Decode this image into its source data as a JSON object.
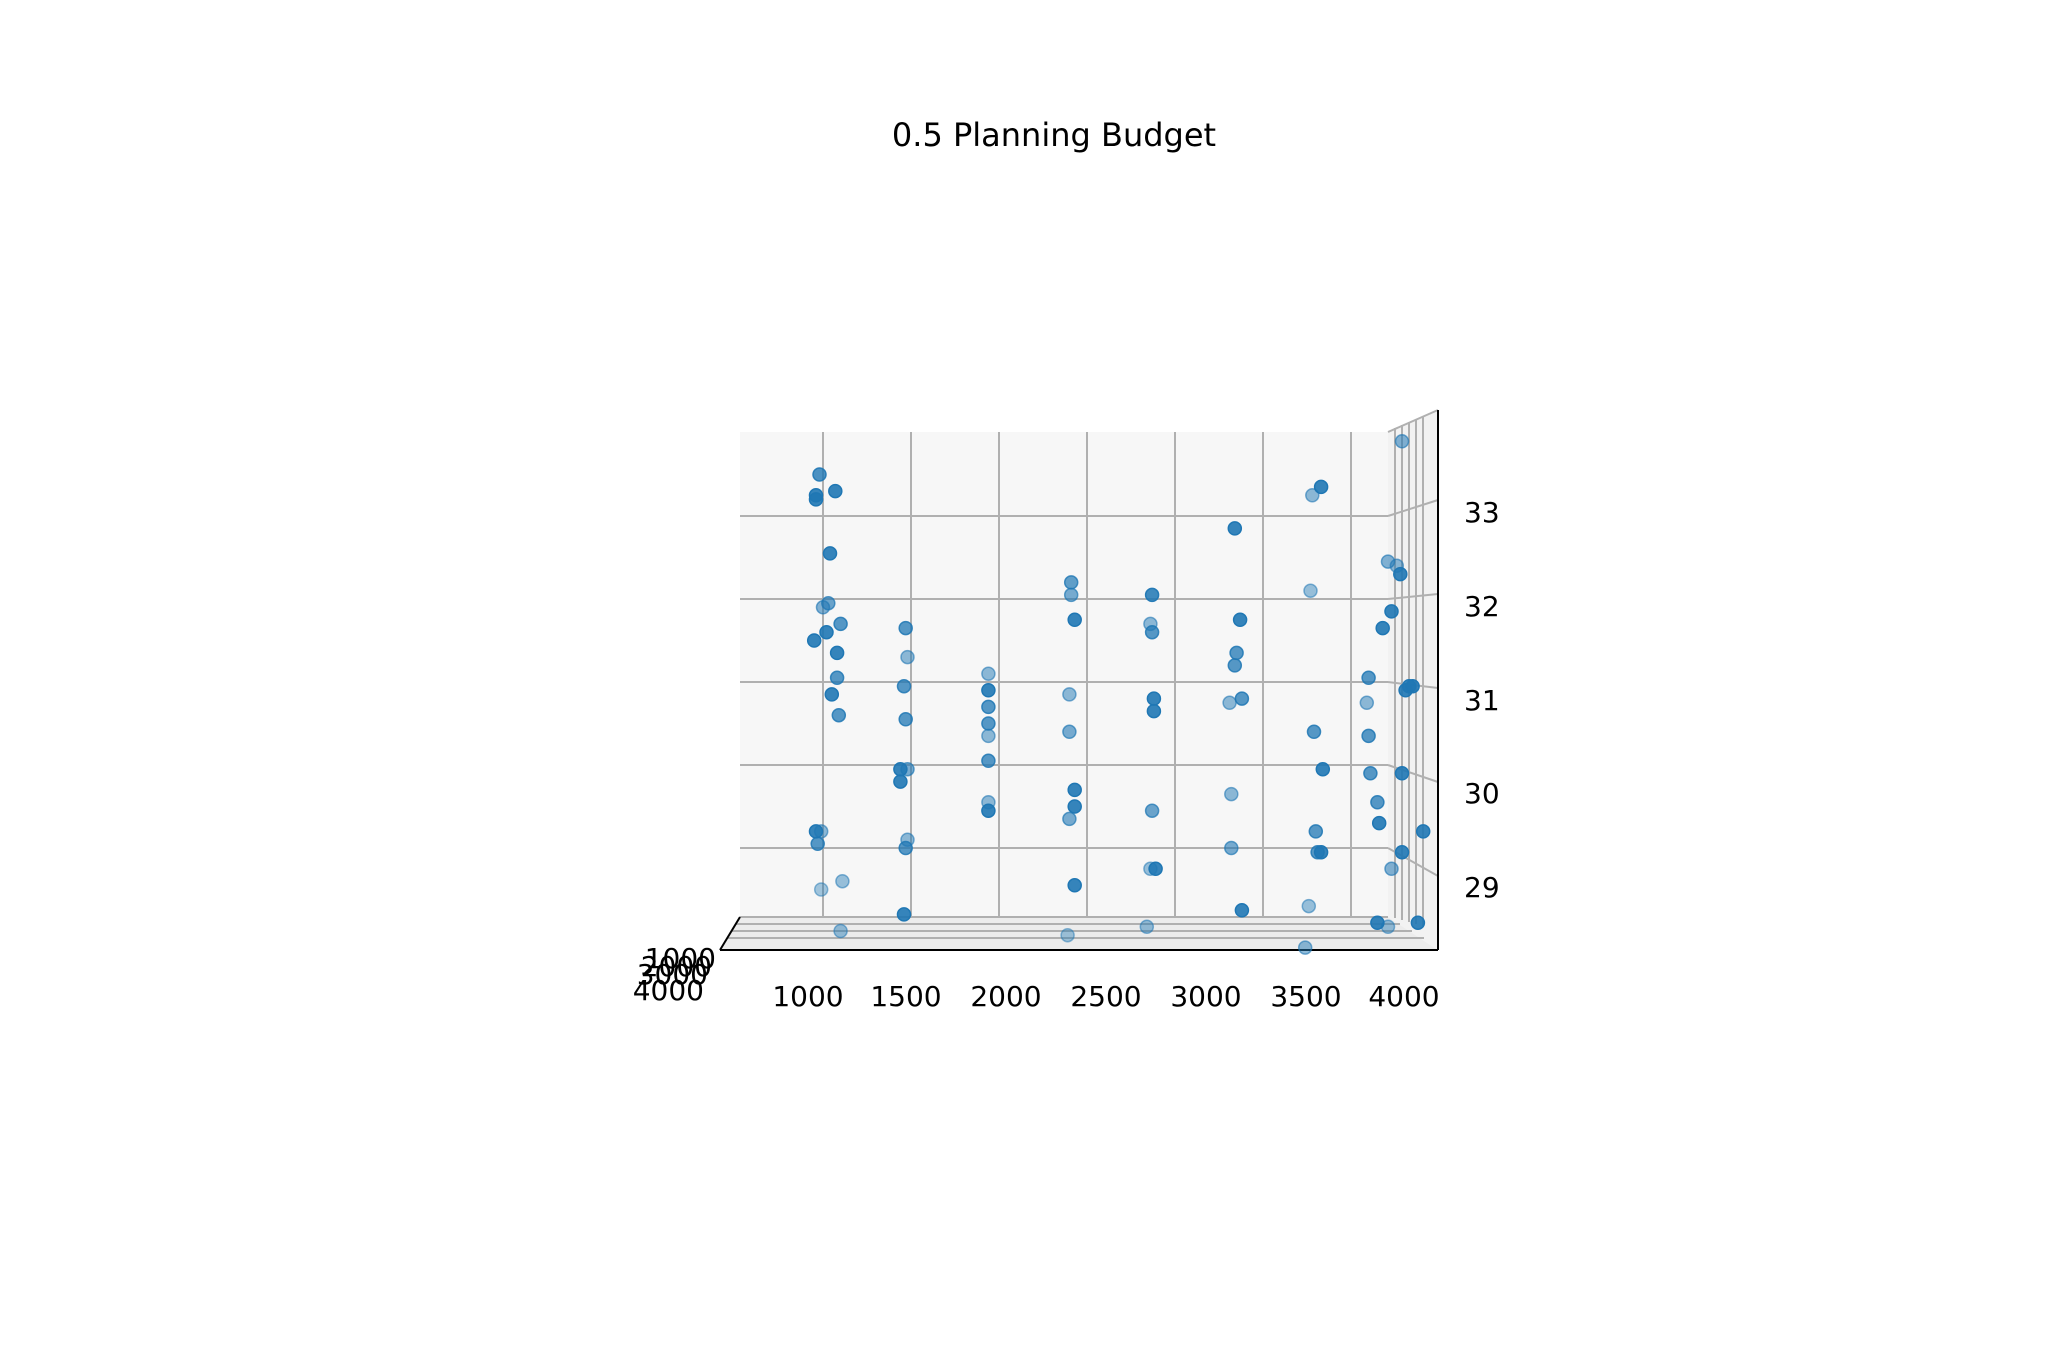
{
  "chart_data": {
    "type": "scatter",
    "title": "0.5 Planning Budget",
    "xlabel": "",
    "ylabel": "",
    "zlabel": "",
    "x_ticks": [
      "1000",
      "1500",
      "2000",
      "2500",
      "3000",
      "3500",
      "4000"
    ],
    "z_ticks": [
      "29",
      "30",
      "31",
      "32",
      "33"
    ],
    "y_ticks": [
      "1000",
      "2000",
      "3000",
      "4000"
    ],
    "grid": true,
    "color": "#1f77b4",
    "note_projection": "3D scatter viewed edge-on; depth axis collapsed",
    "points": [
      {
        "x": 1020,
        "z": 31.6,
        "a": 0.9
      },
      {
        "x": 1040,
        "z": 32.55,
        "a": 0.9
      },
      {
        "x": 1030,
        "z": 31.95,
        "a": 0.65
      },
      {
        "x": 960,
        "z": 33.25,
        "a": 0.9
      },
      {
        "x": 980,
        "z": 33.5,
        "a": 0.8
      },
      {
        "x": 960,
        "z": 33.2,
        "a": 0.9
      },
      {
        "x": 950,
        "z": 31.5,
        "a": 0.9
      },
      {
        "x": 1000,
        "z": 31.9,
        "a": 0.55
      },
      {
        "x": 1050,
        "z": 30.85,
        "a": 0.9
      },
      {
        "x": 1080,
        "z": 31.05,
        "a": 0.75
      },
      {
        "x": 1090,
        "z": 30.6,
        "a": 0.75
      },
      {
        "x": 1080,
        "z": 31.35,
        "a": 0.9
      },
      {
        "x": 1070,
        "z": 33.3,
        "a": 0.9
      },
      {
        "x": 1100,
        "z": 31.7,
        "a": 0.75
      },
      {
        "x": 960,
        "z": 29.2,
        "a": 0.9
      },
      {
        "x": 990,
        "z": 29.2,
        "a": 0.5
      },
      {
        "x": 970,
        "z": 29.05,
        "a": 0.75
      },
      {
        "x": 990,
        "z": 28.5,
        "a": 0.4
      },
      {
        "x": 1110,
        "z": 28.6,
        "a": 0.45
      },
      {
        "x": 1100,
        "z": 28.0,
        "a": 0.45
      },
      {
        "x": 1470,
        "z": 31.65,
        "a": 0.75
      },
      {
        "x": 1480,
        "z": 31.3,
        "a": 0.5
      },
      {
        "x": 1460,
        "z": 30.95,
        "a": 0.75
      },
      {
        "x": 1470,
        "z": 30.55,
        "a": 0.75
      },
      {
        "x": 1480,
        "z": 29.95,
        "a": 0.6
      },
      {
        "x": 1440,
        "z": 29.95,
        "a": 0.9
      },
      {
        "x": 1440,
        "z": 29.8,
        "a": 0.9
      },
      {
        "x": 1470,
        "z": 29.0,
        "a": 0.75
      },
      {
        "x": 1480,
        "z": 29.1,
        "a": 0.5
      },
      {
        "x": 1460,
        "z": 28.2,
        "a": 0.9
      },
      {
        "x": 1940,
        "z": 31.1,
        "a": 0.5
      },
      {
        "x": 1940,
        "z": 30.9,
        "a": 0.9
      },
      {
        "x": 1940,
        "z": 30.7,
        "a": 0.75
      },
      {
        "x": 1940,
        "z": 30.5,
        "a": 0.75
      },
      {
        "x": 1940,
        "z": 30.35,
        "a": 0.5
      },
      {
        "x": 1940,
        "z": 30.05,
        "a": 0.75
      },
      {
        "x": 1940,
        "z": 29.55,
        "a": 0.5
      },
      {
        "x": 1940,
        "z": 29.45,
        "a": 0.9
      },
      {
        "x": 2410,
        "z": 32.2,
        "a": 0.7
      },
      {
        "x": 2410,
        "z": 32.05,
        "a": 0.6
      },
      {
        "x": 2430,
        "z": 31.75,
        "a": 0.9
      },
      {
        "x": 2400,
        "z": 30.85,
        "a": 0.5
      },
      {
        "x": 2400,
        "z": 30.4,
        "a": 0.6
      },
      {
        "x": 2430,
        "z": 29.7,
        "a": 0.9
      },
      {
        "x": 2430,
        "z": 29.5,
        "a": 0.9
      },
      {
        "x": 2400,
        "z": 29.35,
        "a": 0.6
      },
      {
        "x": 2430,
        "z": 28.55,
        "a": 0.9
      },
      {
        "x": 2390,
        "z": 27.95,
        "a": 0.4
      },
      {
        "x": 2870,
        "z": 32.05,
        "a": 0.85
      },
      {
        "x": 2860,
        "z": 31.7,
        "a": 0.5
      },
      {
        "x": 2870,
        "z": 31.6,
        "a": 0.75
      },
      {
        "x": 2880,
        "z": 30.8,
        "a": 0.9
      },
      {
        "x": 2880,
        "z": 30.65,
        "a": 0.9
      },
      {
        "x": 2870,
        "z": 29.45,
        "a": 0.65
      },
      {
        "x": 2860,
        "z": 28.75,
        "a": 0.45
      },
      {
        "x": 2890,
        "z": 28.75,
        "a": 0.9
      },
      {
        "x": 2840,
        "z": 28.05,
        "a": 0.45
      },
      {
        "x": 3340,
        "z": 32.85,
        "a": 0.9
      },
      {
        "x": 3370,
        "z": 31.75,
        "a": 0.9
      },
      {
        "x": 3350,
        "z": 31.35,
        "a": 0.75
      },
      {
        "x": 3340,
        "z": 31.2,
        "a": 0.75
      },
      {
        "x": 3380,
        "z": 30.8,
        "a": 0.75
      },
      {
        "x": 3310,
        "z": 30.75,
        "a": 0.5
      },
      {
        "x": 3320,
        "z": 29.65,
        "a": 0.5
      },
      {
        "x": 3320,
        "z": 29.0,
        "a": 0.6
      },
      {
        "x": 3380,
        "z": 28.25,
        "a": 0.9
      },
      {
        "x": 3780,
        "z": 33.25,
        "a": 0.5
      },
      {
        "x": 3830,
        "z": 33.35,
        "a": 0.9
      },
      {
        "x": 3770,
        "z": 32.1,
        "a": 0.45
      },
      {
        "x": 3790,
        "z": 30.4,
        "a": 0.75
      },
      {
        "x": 3840,
        "z": 29.95,
        "a": 0.9
      },
      {
        "x": 3800,
        "z": 29.2,
        "a": 0.75
      },
      {
        "x": 3810,
        "z": 28.95,
        "a": 0.75
      },
      {
        "x": 3830,
        "z": 28.95,
        "a": 0.9
      },
      {
        "x": 3760,
        "z": 28.3,
        "a": 0.45
      },
      {
        "x": 3740,
        "z": 27.8,
        "a": 0.5
      },
      {
        "x": 4290,
        "z": 33.9,
        "a": 0.55
      },
      {
        "x": 4260,
        "z": 32.4,
        "a": 0.5
      },
      {
        "x": 4280,
        "z": 32.3,
        "a": 0.9
      },
      {
        "x": 4210,
        "z": 32.45,
        "a": 0.55
      },
      {
        "x": 4230,
        "z": 31.85,
        "a": 0.9
      },
      {
        "x": 4180,
        "z": 31.65,
        "a": 0.9
      },
      {
        "x": 4100,
        "z": 31.05,
        "a": 0.75
      },
      {
        "x": 4090,
        "z": 30.75,
        "a": 0.5
      },
      {
        "x": 4100,
        "z": 30.35,
        "a": 0.75
      },
      {
        "x": 4110,
        "z": 29.9,
        "a": 0.75
      },
      {
        "x": 4150,
        "z": 29.55,
        "a": 0.75
      },
      {
        "x": 4160,
        "z": 29.3,
        "a": 0.9
      },
      {
        "x": 4230,
        "z": 28.75,
        "a": 0.55
      },
      {
        "x": 4150,
        "z": 28.1,
        "a": 0.9
      },
      {
        "x": 4210,
        "z": 28.05,
        "a": 0.45
      },
      {
        "x": 4290,
        "z": 28.95,
        "a": 0.9
      },
      {
        "x": 4310,
        "z": 30.9,
        "a": 0.9
      },
      {
        "x": 4330,
        "z": 30.95,
        "a": 0.9
      },
      {
        "x": 4350,
        "z": 30.95,
        "a": 0.9
      },
      {
        "x": 4290,
        "z": 29.9,
        "a": 0.9
      },
      {
        "x": 4410,
        "z": 29.2,
        "a": 0.9
      },
      {
        "x": 4380,
        "z": 28.1,
        "a": 0.9
      }
    ]
  }
}
